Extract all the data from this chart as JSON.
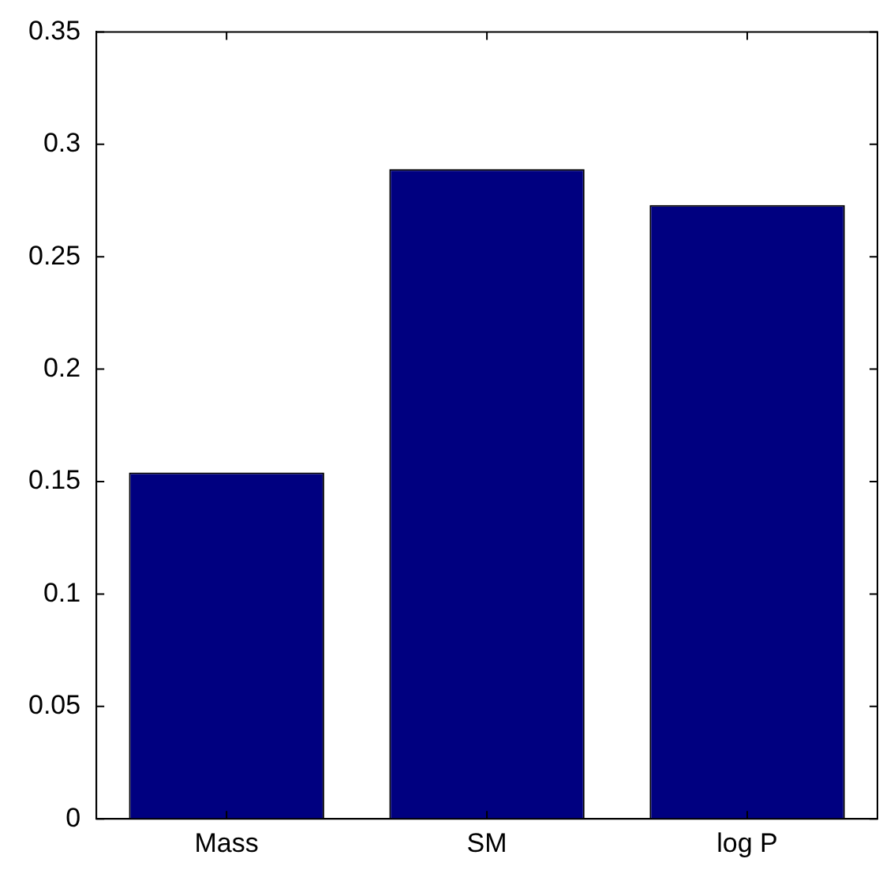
{
  "chart_data": {
    "type": "bar",
    "categories": [
      "Mass",
      "SM",
      "log P"
    ],
    "values": [
      0.154,
      0.289,
      0.273
    ],
    "color": "#000080",
    "ylim": [
      0,
      0.35
    ],
    "yticks": [
      0,
      0.05,
      0.1,
      0.15,
      0.2,
      0.25,
      0.3,
      0.35
    ],
    "grid": false
  }
}
